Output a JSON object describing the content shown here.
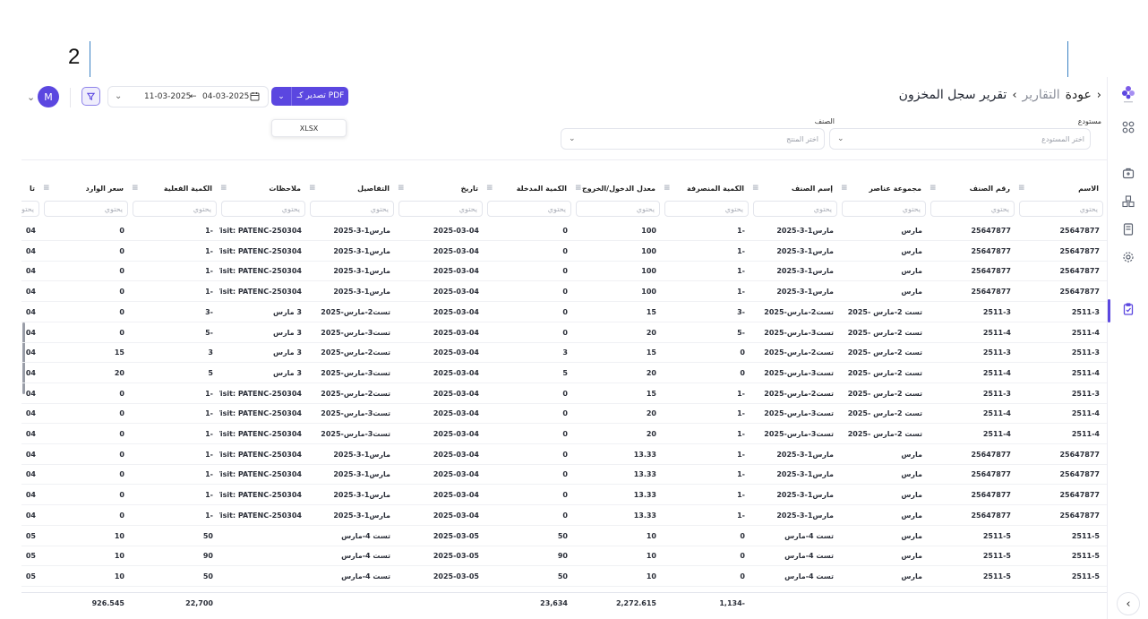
{
  "header": {
    "back": "عودة",
    "parent": "التقارير",
    "title": "تقرير سجل المخزون",
    "sep1": "‹",
    "sep2": "›"
  },
  "toolbar": {
    "avatar": "M",
    "date_from": "04-03-2025",
    "date_arrow": "←",
    "date_to": "11-03-2025",
    "export_label": "تصدير كـ PDF",
    "export_option": "XLSX"
  },
  "filters": {
    "warehouse_label": "مستودع",
    "warehouse_placeholder": "اختر المستودع",
    "item_label": "الصنف",
    "item_placeholder": "اختر المنتج"
  },
  "annotation": {
    "number": "2"
  },
  "table": {
    "search_placeholder": "يحتوي",
    "columns": [
      "الاسم",
      "رقم الصنف",
      "مجموعة عناصر",
      "إسم الصنف",
      "الكمية المنصرفة",
      "معدل الدخول/الخروج",
      "الكمية المدخلة",
      "تاريخ",
      "التفاصيل",
      "ملاحظات",
      "الكمية الفعلية",
      "سعر الوارد",
      "تا"
    ],
    "rows": [
      [
        "25647877",
        "25647877",
        "مارس",
        "مارس1-3-2025",
        "-1",
        "100",
        "0",
        "2025-03-04",
        "مارس1-3-2025",
        "Visit: PATENC-250304...",
        "-1",
        "0",
        "04"
      ],
      [
        "25647877",
        "25647877",
        "مارس",
        "مارس1-3-2025",
        "-1",
        "100",
        "0",
        "2025-03-04",
        "مارس1-3-2025",
        "Visit: PATENC-250304...",
        "-1",
        "0",
        "04"
      ],
      [
        "25647877",
        "25647877",
        "مارس",
        "مارس1-3-2025",
        "-1",
        "100",
        "0",
        "2025-03-04",
        "مارس1-3-2025",
        "Visit: PATENC-250304...",
        "-1",
        "0",
        "04"
      ],
      [
        "25647877",
        "25647877",
        "مارس",
        "مارس1-3-2025",
        "-1",
        "100",
        "0",
        "2025-03-04",
        "مارس1-3-2025",
        "Visit: PATENC-250304...",
        "-1",
        "0",
        "04"
      ],
      [
        "2511-3",
        "2511-3",
        "تست 2-مارس -2025",
        "تست2-مارس-2025",
        "-3",
        "15",
        "0",
        "2025-03-04",
        "تست2-مارس-2025",
        "3 مارس",
        "-3",
        "0",
        "04"
      ],
      [
        "2511-4",
        "2511-4",
        "تست 2-مارس -2025",
        "تست3-مارس-2025",
        "-5",
        "20",
        "0",
        "2025-03-04",
        "تست3-مارس-2025",
        "3 مارس",
        "-5",
        "0",
        "04"
      ],
      [
        "2511-3",
        "2511-3",
        "تست 2-مارس -2025",
        "تست2-مارس-2025",
        "0",
        "15",
        "3",
        "2025-03-04",
        "تست2-مارس-2025",
        "3 مارس",
        "3",
        "15",
        "04"
      ],
      [
        "2511-4",
        "2511-4",
        "تست 2-مارس -2025",
        "تست3-مارس-2025",
        "0",
        "20",
        "5",
        "2025-03-04",
        "تست3-مارس-2025",
        "3 مارس",
        "5",
        "20",
        "04"
      ],
      [
        "2511-3",
        "2511-3",
        "تست 2-مارس -2025",
        "تست2-مارس-2025",
        "-1",
        "15",
        "0",
        "2025-03-04",
        "تست2-مارس-2025",
        "Visit: PATENC-250304",
        "-1",
        "0",
        "04"
      ],
      [
        "2511-4",
        "2511-4",
        "تست 2-مارس -2025",
        "تست3-مارس-2025",
        "-1",
        "20",
        "0",
        "2025-03-04",
        "تست3-مارس-2025",
        "Visit: PATENC-250304",
        "-1",
        "0",
        "04"
      ],
      [
        "2511-4",
        "2511-4",
        "تست 2-مارس -2025",
        "تست3-مارس-2025",
        "-1",
        "20",
        "0",
        "2025-03-04",
        "تست3-مارس-2025",
        "Visit: PATENC-250304",
        "-1",
        "0",
        "04"
      ],
      [
        "25647877",
        "25647877",
        "مارس",
        "مارس1-3-2025",
        "-1",
        "13.33",
        "0",
        "2025-03-04",
        "مارس1-3-2025",
        "Visit: PATENC-250304...",
        "-1",
        "0",
        "04"
      ],
      [
        "25647877",
        "25647877",
        "مارس",
        "مارس1-3-2025",
        "-1",
        "13.33",
        "0",
        "2025-03-04",
        "مارس1-3-2025",
        "Visit: PATENC-250304...",
        "-1",
        "0",
        "04"
      ],
      [
        "25647877",
        "25647877",
        "مارس",
        "مارس1-3-2025",
        "-1",
        "13.33",
        "0",
        "2025-03-04",
        "مارس1-3-2025",
        "Visit: PATENC-250304...",
        "-1",
        "0",
        "04"
      ],
      [
        "25647877",
        "25647877",
        "مارس",
        "مارس1-3-2025",
        "-1",
        "13.33",
        "0",
        "2025-03-04",
        "مارس1-3-2025",
        "Visit: PATENC-250304...",
        "-1",
        "0",
        "04"
      ],
      [
        "2511-5",
        "2511-5",
        "مارس",
        "تست 4-مارس",
        "0",
        "10",
        "50",
        "2025-03-05",
        "تست 4-مارس",
        "",
        "50",
        "10",
        "05"
      ],
      [
        "2511-5",
        "2511-5",
        "مارس",
        "تست 4-مارس",
        "0",
        "10",
        "90",
        "2025-03-05",
        "تست 4-مارس",
        "",
        "90",
        "10",
        "05"
      ],
      [
        "2511-5",
        "2511-5",
        "مارس",
        "تست 4-مارس",
        "0",
        "10",
        "50",
        "2025-03-05",
        "تست 4-مارس",
        "",
        "50",
        "10",
        "05"
      ]
    ],
    "totals": [
      "",
      "",
      "",
      "",
      "-1,134",
      "2,272.615",
      "23,634",
      "",
      "",
      "",
      "22,700",
      "926.545",
      ""
    ]
  }
}
